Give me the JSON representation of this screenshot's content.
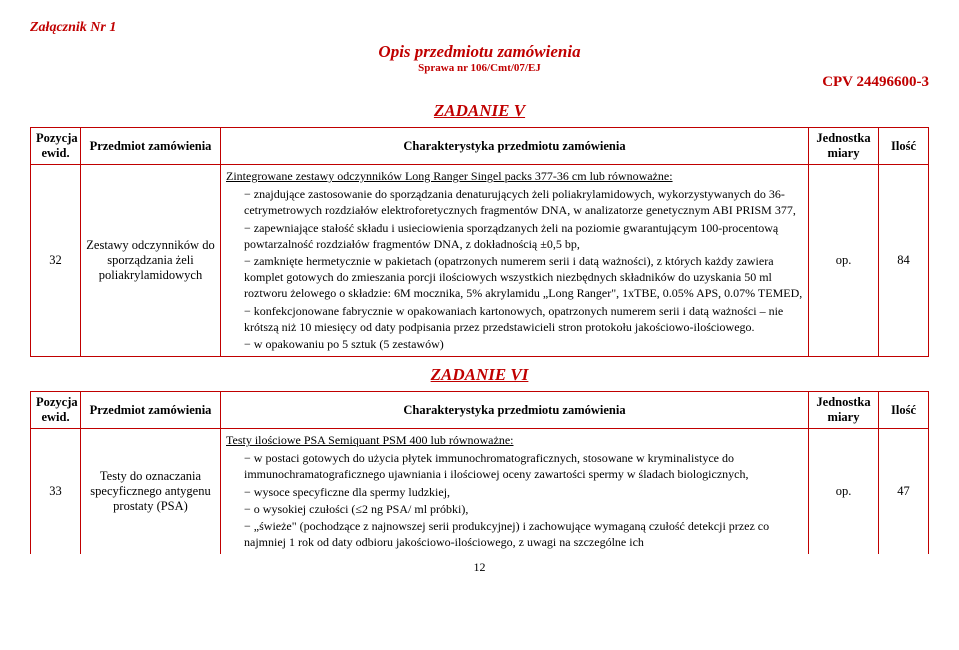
{
  "header": {
    "attachment": "Załącznik Nr 1",
    "mainTitle": "Opis przedmiotu zamówienia",
    "caseNo": "Sprawa nr 106/Cmt/07/EJ",
    "cpv": "CPV 24496600-3"
  },
  "task5": {
    "heading": "ZADANIE  V",
    "columns": {
      "pozycja": "Pozycja ewid.",
      "przedmiot": "Przedmiot zamówienia",
      "char": "Charakterystyka przedmiotu zamówienia",
      "jedn": "Jednostka miary",
      "ilosc": "Ilość"
    },
    "row": {
      "pozycja": "32",
      "przedmiot": "Zestawy odczynników do sporządzania żeli poliakrylamidowych",
      "lead": "Zintegrowane zestawy odczynników Long Ranger Singel packs 377-36 cm lub równoważne:",
      "items": [
        "znajdujące zastosowanie do sporządzania denaturujących żeli poliakrylamidowych, wykorzystywanych do 36-cetrymetrowych rozdziałów elektroforetycznych fragmentów DNA, w analizatorze genetycznym ABI PRISM 377,",
        "zapewniające stałość składu i usieciowienia sporządzanych żeli na poziomie gwarantującym 100-procentową powtarzalność rozdziałów fragmentów DNA, z dokładnością ±0,5 bp,",
        "zamknięte hermetycznie w pakietach (opatrzonych numerem serii i datą ważności), z których każdy zawiera komplet gotowych do zmieszania porcji ilościowych wszystkich niezbędnych składników do uzyskania 50 ml roztworu żelowego o składzie: 6M mocznika, 5% akrylamidu „Long Ranger\", 1xTBE, 0.05% APS, 0.07% TEMED,",
        "konfekcjonowane fabrycznie w opakowaniach kartonowych, opatrzonych numerem serii i datą ważności – nie krótszą niż 10 miesięcy od daty podpisania przez przedstawicieli stron protokołu jakościowo-ilościowego.",
        "w opakowaniu po 5 sztuk (5 zestawów)"
      ],
      "jedn": "op.",
      "ilosc": "84"
    }
  },
  "task6": {
    "heading": "ZADANIE  VI",
    "columns": {
      "pozycja": "Pozycja ewid.",
      "przedmiot": "Przedmiot zamówienia",
      "char": "Charakterystyka przedmiotu zamówienia",
      "jedn": "Jednostka miary",
      "ilosc": "Ilość"
    },
    "row": {
      "pozycja": "33",
      "przedmiot": "Testy do oznaczania specyficznego antygenu prostaty (PSA)",
      "lead": "Testy ilościowe PSA Semiquant PSM 400 lub równoważne:",
      "items": [
        "w postaci gotowych do użycia płytek immunochromatograficznych, stosowane w kryminalistyce do immunochramatograficznego ujawniania i ilościowej oceny zawartości spermy w śladach biologicznych,",
        "wysoce specyficzne dla spermy ludzkiej,",
        "o wysokiej czułości (≤2 ng PSA/ ml próbki),",
        "„świeże\" (pochodzące z najnowszej serii produkcyjnej) i zachowujące wymaganą czułość detekcji przez co najmniej 1 rok od daty odbioru jakościowo-ilościowego, z uwagi na szczególne ich"
      ],
      "jedn": "op.",
      "ilosc": "47"
    }
  },
  "pageNumber": "12"
}
